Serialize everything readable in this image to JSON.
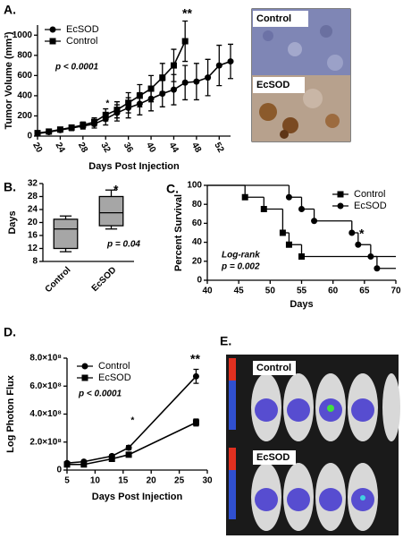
{
  "panel_labels": [
    "A.",
    "B.",
    "C.",
    "D.",
    "E."
  ],
  "images": [
    {
      "labels": [
        "Control",
        "EcSOD"
      ]
    },
    {
      "labels": [
        "Control",
        "EcSOD"
      ]
    }
  ],
  "chart_data": [
    {
      "type": "line",
      "xlabel": "Days Post Injection",
      "ylabel": "Tumor Volume (mm³)",
      "annotations": [
        "**",
        "*",
        "p < 0.0001"
      ],
      "xlim": [
        20,
        54
      ],
      "xticks": [
        20,
        24,
        28,
        32,
        36,
        40,
        44,
        48,
        52
      ],
      "ylim": [
        0,
        1100
      ],
      "yticks": [
        0,
        200,
        400,
        600,
        800,
        1000
      ],
      "series": [
        {
          "name": "EcSOD",
          "color": "#000000",
          "marker": "circle",
          "x": [
            20,
            22,
            24,
            26,
            28,
            30,
            32,
            34,
            36,
            38,
            40,
            42,
            44,
            46,
            48,
            50,
            52,
            54
          ],
          "values": [
            25,
            40,
            60,
            80,
            100,
            120,
            170,
            230,
            280,
            320,
            370,
            420,
            460,
            530,
            540,
            580,
            700,
            740
          ],
          "errors": [
            10,
            15,
            20,
            25,
            30,
            40,
            60,
            80,
            100,
            110,
            120,
            130,
            150,
            170,
            180,
            180,
            200,
            170
          ]
        },
        {
          "name": "Control",
          "color": "#000000",
          "marker": "square",
          "x": [
            20,
            22,
            24,
            26,
            28,
            30,
            32,
            34,
            36,
            38,
            40,
            42,
            44,
            46
          ],
          "values": [
            30,
            45,
            65,
            85,
            110,
            140,
            210,
            260,
            330,
            400,
            470,
            580,
            700,
            940
          ],
          "errors": [
            10,
            15,
            20,
            25,
            30,
            40,
            60,
            80,
            100,
            110,
            130,
            140,
            160,
            200
          ]
        }
      ]
    },
    {
      "type": "box",
      "ylabel": "Days",
      "annotations": [
        "*",
        "p = 0.04"
      ],
      "color": "#a6a6a6",
      "categories": [
        "Control",
        "EcSOD"
      ],
      "ylim": [
        8,
        32
      ],
      "yticks": [
        8,
        12,
        16,
        20,
        24,
        28,
        32
      ],
      "boxes": [
        {
          "min": 11,
          "q1": 12,
          "median": 18,
          "q3": 21,
          "max": 22
        },
        {
          "min": 18,
          "q1": 19,
          "median": 23,
          "q3": 28,
          "max": 30
        }
      ]
    },
    {
      "type": "step",
      "xlabel": "Days",
      "ylabel": "Percent Survival",
      "annotations": [
        "*",
        "Log-rank",
        "p = 0.002"
      ],
      "xlim": [
        40,
        70
      ],
      "xticks": [
        40,
        45,
        50,
        55,
        60,
        65,
        70
      ],
      "ylim": [
        0,
        100
      ],
      "yticks": [
        0,
        20,
        40,
        60,
        80,
        100
      ],
      "series": [
        {
          "name": "Control",
          "color": "#000000",
          "marker": "square",
          "x": [
            40,
            46,
            49,
            52,
            53,
            55,
            70
          ],
          "values": [
            100,
            87.5,
            75,
            50,
            37.5,
            25,
            25
          ]
        },
        {
          "name": "EcSOD",
          "color": "#000000",
          "marker": "circle",
          "x": [
            40,
            53,
            55,
            57,
            63,
            64,
            66,
            67,
            70
          ],
          "values": [
            100,
            87.5,
            75,
            62.5,
            50,
            37.5,
            25,
            12.5,
            12.5
          ]
        }
      ]
    },
    {
      "type": "line",
      "xlabel": "Days Post Injection",
      "ylabel": "Log Photon Flux",
      "annotations": [
        "**",
        "*",
        "p < 0.0001"
      ],
      "xlim": [
        5,
        30
      ],
      "xticks": [
        5,
        10,
        15,
        20,
        25,
        30
      ],
      "ylim": [
        0,
        800000000
      ],
      "yticks": [
        0,
        {
          "value": 200000000,
          "label": "2.0×10⁸"
        },
        {
          "value": 400000000,
          "label": "4.0×10⁸"
        },
        {
          "value": 600000000,
          "label": "6.0×10⁸"
        },
        {
          "value": 800000000,
          "label": "8.0×10⁸"
        }
      ],
      "series": [
        {
          "name": "Control",
          "color": "#000000",
          "marker": "circle",
          "x": [
            5,
            8,
            13,
            16,
            28
          ],
          "values": [
            50000000,
            60000000,
            100000000,
            160000000,
            670000000
          ],
          "errors": [
            5000000,
            5000000,
            10000000,
            15000000,
            50000000
          ]
        },
        {
          "name": "EcSOD",
          "color": "#000000",
          "marker": "square",
          "x": [
            5,
            8,
            13,
            16,
            28
          ],
          "values": [
            40000000,
            40000000,
            80000000,
            110000000,
            340000000
          ],
          "errors": [
            5000000,
            5000000,
            8000000,
            10000000,
            25000000
          ]
        }
      ]
    }
  ]
}
